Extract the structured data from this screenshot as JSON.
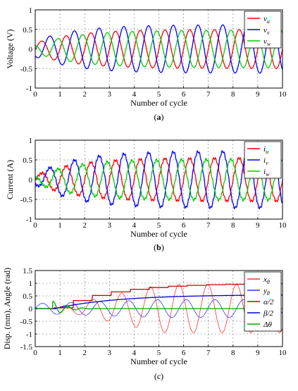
{
  "panels": [
    {
      "caption_left": "(",
      "caption_bold": "a",
      "caption_right": ")"
    },
    {
      "caption_left": "(",
      "caption_bold": "b",
      "caption_right": ")"
    },
    {
      "caption_left": "(",
      "caption_bold": "",
      "caption_right": "(c)"
    }
  ],
  "chart_data": [
    {
      "type": "line",
      "xlabel": "Number of cycle",
      "ylabel": "Voltage (V)",
      "xlim": [
        0,
        10
      ],
      "ylim": [
        -1,
        1
      ],
      "xticks": [
        "0",
        "1",
        "2",
        "3",
        "4",
        "5",
        "6",
        "7",
        "8",
        "9",
        "10"
      ],
      "yticks": [
        "1",
        "0.5",
        "0",
        "-0.5",
        "-1"
      ],
      "grid": true,
      "legend": "top-right",
      "series": [
        {
          "name": "v",
          "sub": "u",
          "color": "#ff0000",
          "amplitude": 0.5,
          "phase_deg": 0,
          "amp_start": 0.15
        },
        {
          "name": "v",
          "sub": "v",
          "color": "#0000ff",
          "amplitude": 0.62,
          "phase_deg": -120,
          "amp_start": 0.2
        },
        {
          "name": "v",
          "sub": "w",
          "color": "#00cc00",
          "amplitude": 0.48,
          "phase_deg": 120,
          "amp_start": 0.1
        }
      ]
    },
    {
      "type": "line",
      "xlabel": "Number of cycle",
      "ylabel": "Current (A)",
      "xlim": [
        0,
        10
      ],
      "ylim": [
        -1,
        1
      ],
      "xticks": [
        "0",
        "1",
        "2",
        "3",
        "4",
        "5",
        "6",
        "7",
        "8",
        "9",
        "10"
      ],
      "yticks": [
        "1",
        "0.5",
        "0",
        "-0.5",
        "-1"
      ],
      "grid": true,
      "legend": "top-right",
      "series": [
        {
          "name": "i",
          "sub": "u",
          "color": "#ff0000",
          "amplitude": 0.55,
          "phase_deg": 0,
          "amp_start": 0.1
        },
        {
          "name": "i",
          "sub": "v",
          "color": "#0000ff",
          "amplitude": 0.72,
          "phase_deg": -120,
          "amp_start": 0.12
        },
        {
          "name": "i",
          "sub": "w",
          "color": "#00cc00",
          "amplitude": 0.52,
          "phase_deg": 120,
          "amp_start": 0.08
        }
      ]
    },
    {
      "type": "line",
      "xlabel": "Number of cycle",
      "ylabel": "Disp. (mm), Angle (rad)",
      "xlim": [
        0,
        10
      ],
      "ylim": [
        -1.5,
        1.5
      ],
      "xticks": [
        "0",
        "1",
        "2",
        "3",
        "4",
        "5",
        "6",
        "7",
        "8",
        "9",
        "10"
      ],
      "yticks": [
        "1.5",
        "1",
        "0.5",
        "0",
        "-0.5",
        "-1",
        "-1.5"
      ],
      "grid": true,
      "legend": "top-right",
      "series": [
        {
          "name": "x",
          "sub": "θ",
          "color": "#ff3333",
          "kind": "growing_sine",
          "amplitude_end": 0.95
        },
        {
          "name": "y",
          "sub": "θ",
          "color": "#3333ff",
          "kind": "decaying_sine",
          "amplitude_end": 0.35
        },
        {
          "name": "α/2",
          "sub": "",
          "color": "#cc0000",
          "kind": "step_rise",
          "final": 1.0
        },
        {
          "name": "β/2",
          "sub": "",
          "color": "#0000cc",
          "kind": "smooth_rise",
          "final": 0.55
        },
        {
          "name": "Δθ",
          "sub": "",
          "color": "#00aa00",
          "kind": "transient",
          "final": 0.0
        }
      ]
    }
  ]
}
